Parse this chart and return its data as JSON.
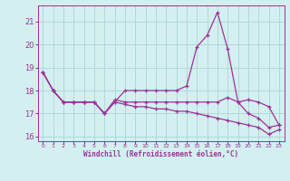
{
  "xlabel": "Windchill (Refroidissement éolien,°C)",
  "bg_color": "#d4efef",
  "grid_color": "#b0d8d8",
  "line_color": "#993399",
  "xlim": [
    -0.5,
    23.5
  ],
  "ylim": [
    15.8,
    21.7
  ],
  "yticks": [
    16,
    17,
    18,
    19,
    20,
    21
  ],
  "xticks": [
    0,
    1,
    2,
    3,
    4,
    5,
    6,
    7,
    8,
    9,
    10,
    11,
    12,
    13,
    14,
    15,
    16,
    17,
    18,
    19,
    20,
    21,
    22,
    23
  ],
  "series1_x": [
    0,
    1,
    2,
    3,
    4,
    5,
    6,
    7,
    8,
    9,
    10,
    11,
    12,
    13,
    14,
    15,
    16,
    17,
    18,
    19,
    20,
    21,
    22,
    23
  ],
  "series1_y": [
    18.8,
    18.0,
    17.5,
    17.5,
    17.5,
    17.5,
    17.0,
    17.5,
    18.0,
    18.0,
    18.0,
    18.0,
    18.0,
    18.0,
    18.2,
    19.9,
    20.4,
    21.4,
    19.8,
    17.5,
    17.6,
    17.5,
    17.3,
    16.5
  ],
  "series2_x": [
    0,
    1,
    2,
    3,
    4,
    5,
    6,
    7,
    8,
    9,
    10,
    11,
    12,
    13,
    14,
    15,
    16,
    17,
    18,
    19,
    20,
    21,
    22,
    23
  ],
  "series2_y": [
    18.8,
    18.0,
    17.5,
    17.5,
    17.5,
    17.5,
    17.0,
    17.6,
    17.5,
    17.5,
    17.5,
    17.5,
    17.5,
    17.5,
    17.5,
    17.5,
    17.5,
    17.5,
    17.7,
    17.5,
    17.0,
    16.8,
    16.4,
    16.5
  ],
  "series3_x": [
    0,
    1,
    2,
    3,
    4,
    5,
    6,
    7,
    8,
    9,
    10,
    11,
    12,
    13,
    14,
    15,
    16,
    17,
    18,
    19,
    20,
    21,
    22,
    23
  ],
  "series3_y": [
    18.8,
    18.0,
    17.5,
    17.5,
    17.5,
    17.5,
    17.0,
    17.5,
    17.4,
    17.3,
    17.3,
    17.2,
    17.2,
    17.1,
    17.1,
    17.0,
    16.9,
    16.8,
    16.7,
    16.6,
    16.5,
    16.4,
    16.1,
    16.3
  ]
}
